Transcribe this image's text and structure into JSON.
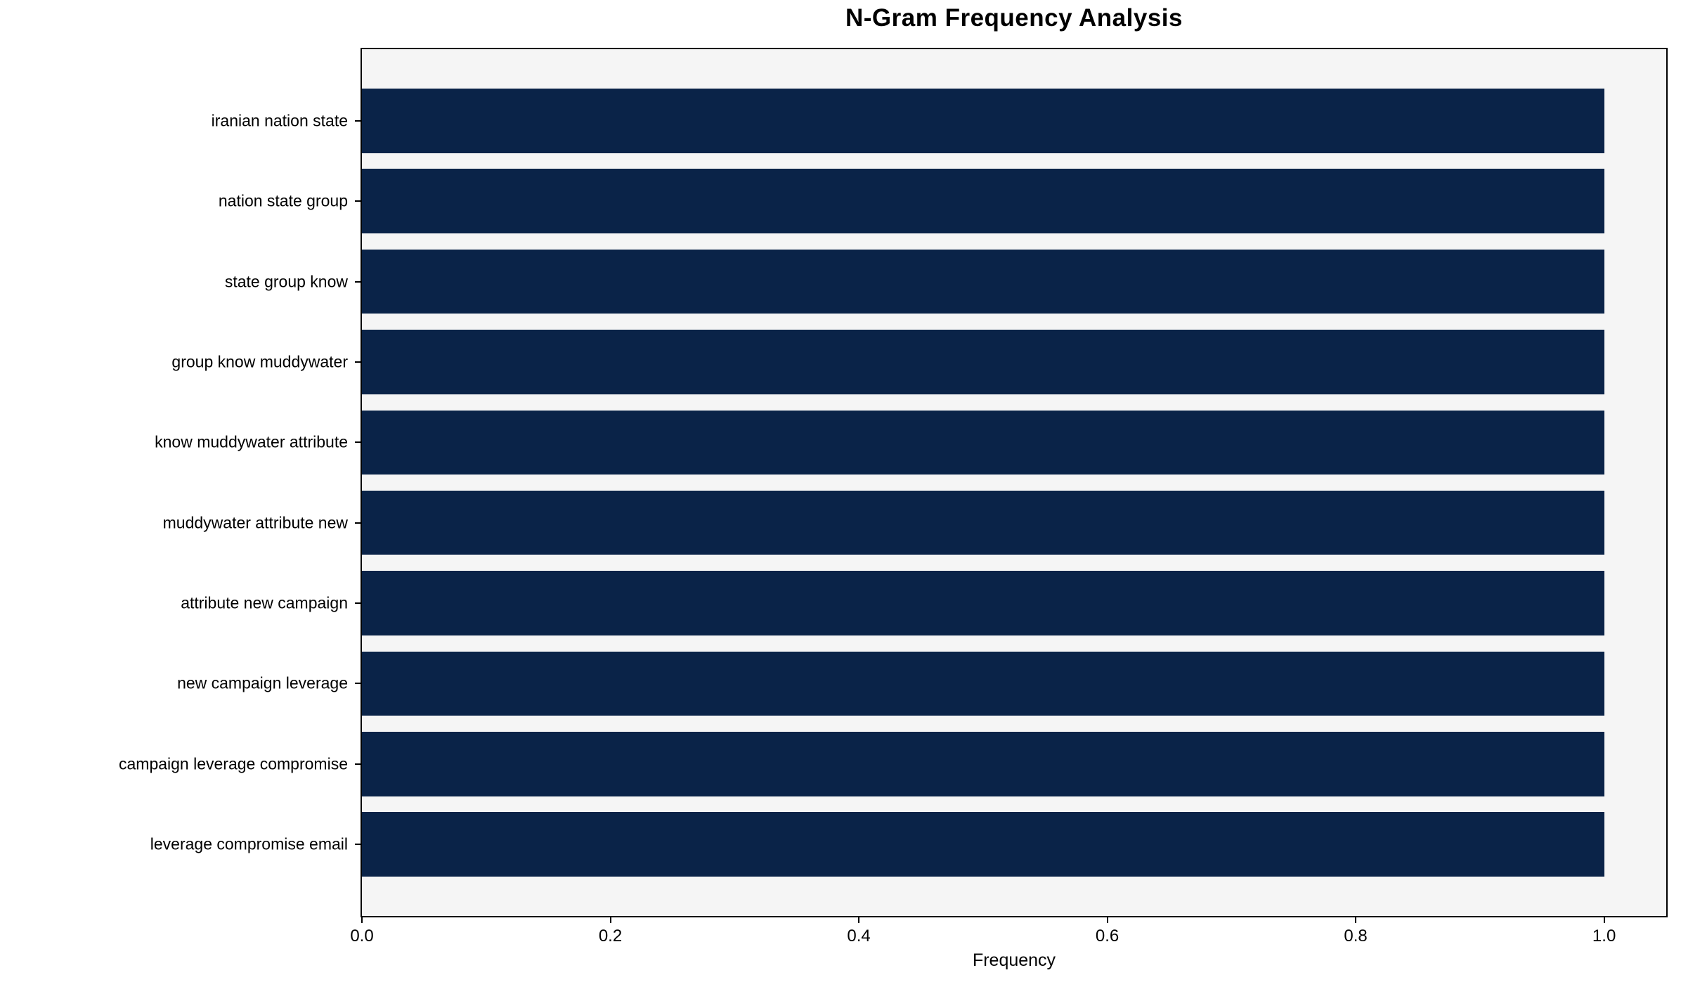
{
  "figure": {
    "background": "#ffffff"
  },
  "chart_data": {
    "type": "bar",
    "orientation": "horizontal",
    "title": "N-Gram Frequency Analysis",
    "xlabel": "Frequency",
    "ylabel": "",
    "categories": [
      "iranian nation state",
      "nation state group",
      "state group know",
      "group know muddywater",
      "know muddywater attribute",
      "muddywater attribute new",
      "attribute new campaign",
      "new campaign leverage",
      "campaign leverage compromise",
      "leverage compromise email"
    ],
    "values": [
      1.0,
      1.0,
      1.0,
      1.0,
      1.0,
      1.0,
      1.0,
      1.0,
      1.0,
      1.0
    ],
    "xlim": [
      0,
      1.05
    ],
    "xticks": [
      0.0,
      0.2,
      0.4,
      0.6,
      0.8,
      1.0
    ],
    "xtick_labels": [
      "0.0",
      "0.2",
      "0.4",
      "0.6",
      "0.8",
      "1.0"
    ],
    "bar_color": "#0a2348",
    "plot_background": "#f5f5f5",
    "axis_color": "#000000",
    "grid": false,
    "legend": "none"
  }
}
